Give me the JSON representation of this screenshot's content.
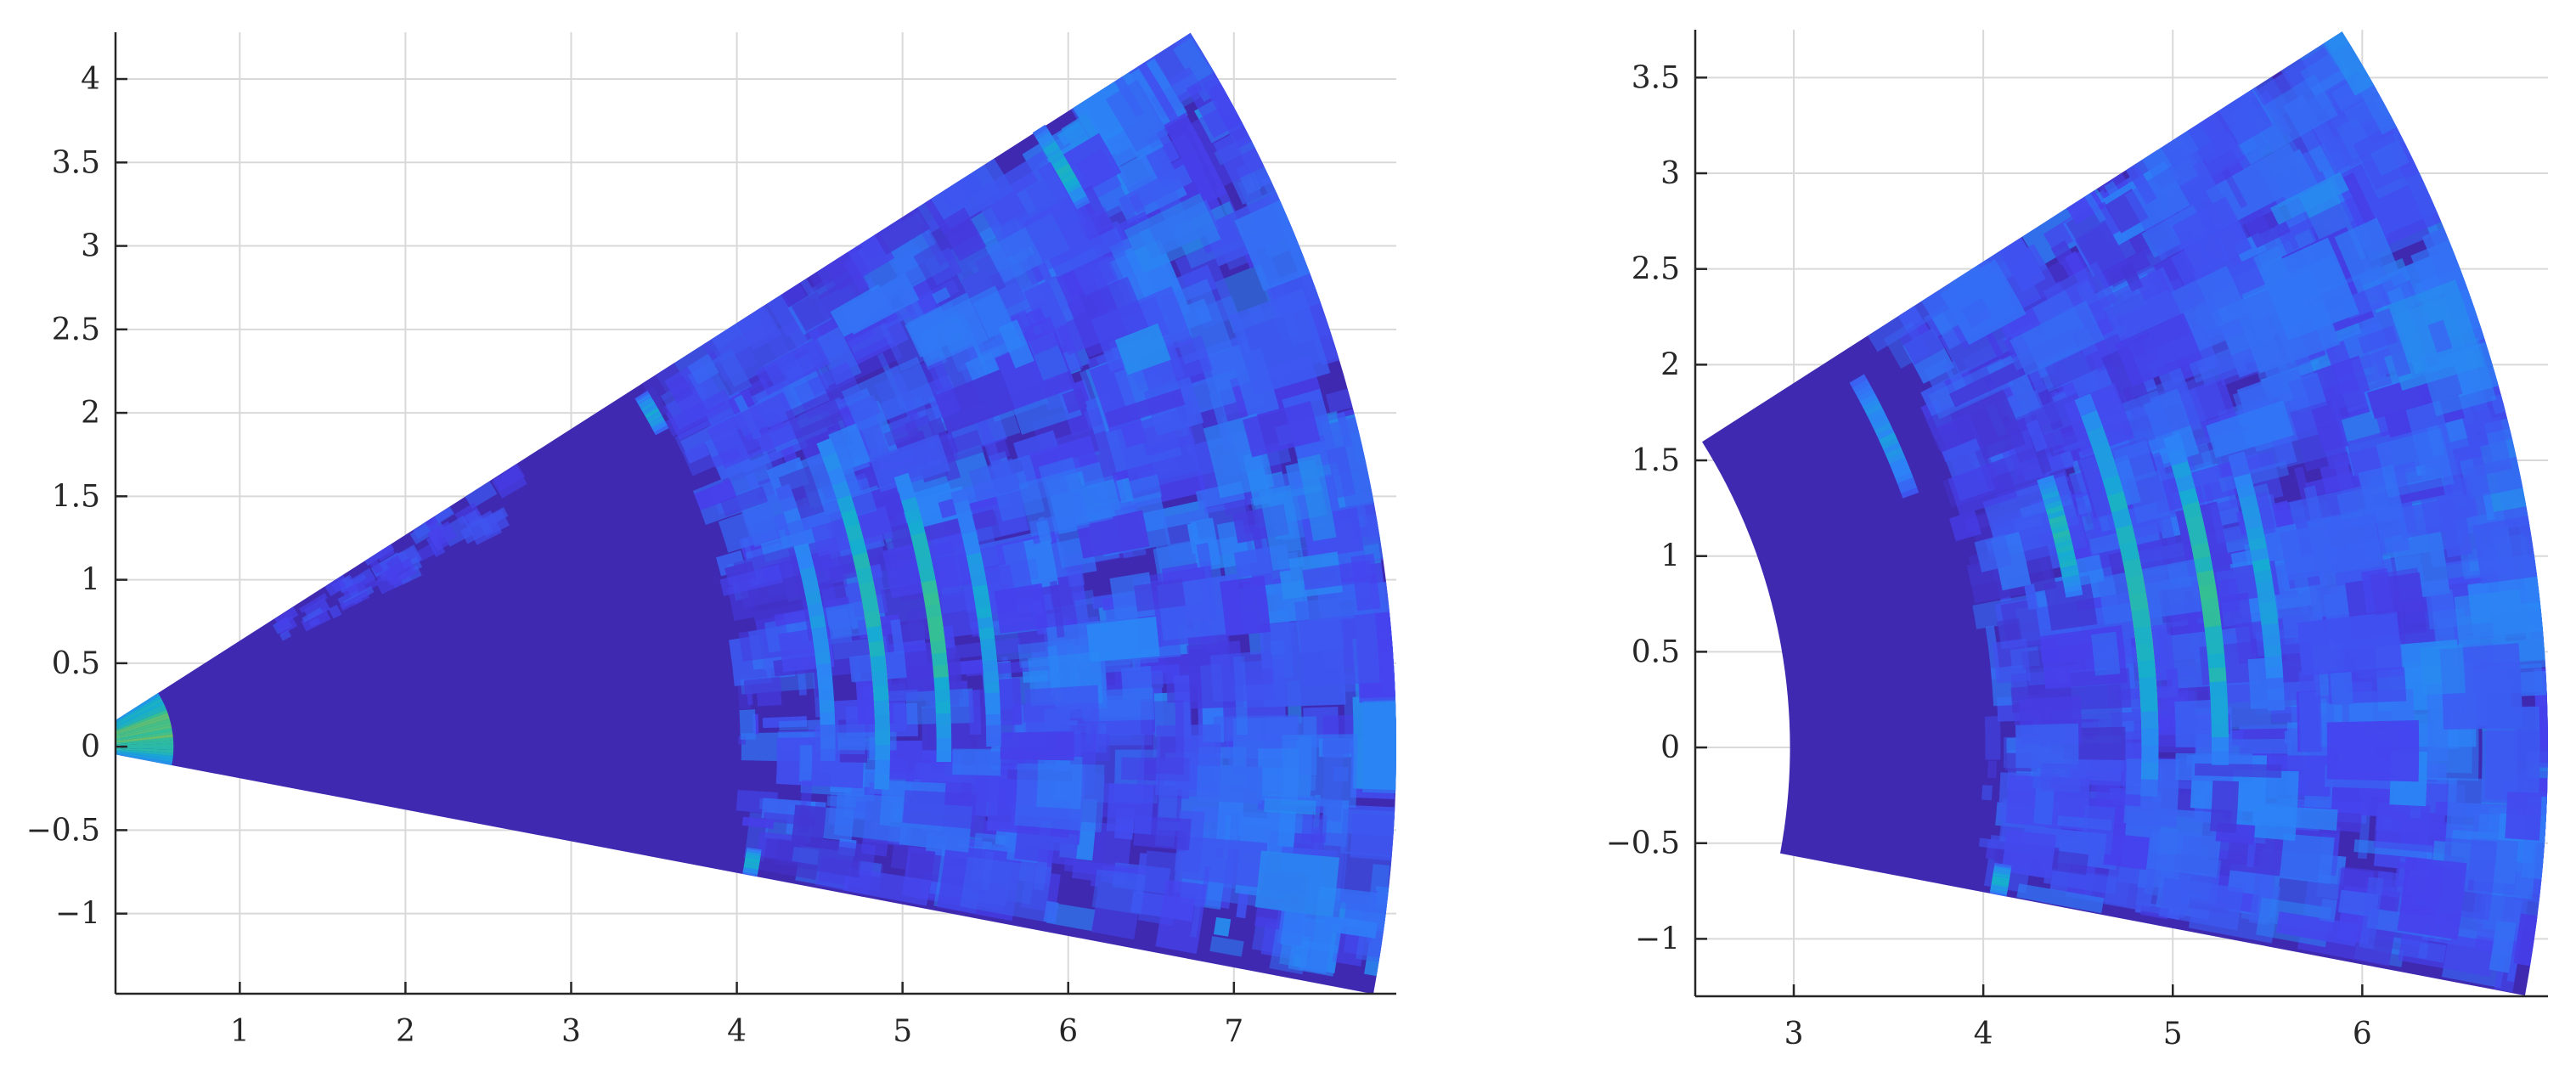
{
  "chart_data": [
    {
      "type": "heatmap",
      "subtype": "polar-sector",
      "title": "",
      "xlabel": "",
      "ylabel": "",
      "xlim": [
        0.25,
        7.98
      ],
      "ylim": [
        -1.48,
        4.28
      ],
      "grid": true,
      "colormap": "parula",
      "x_ticks": [
        1,
        2,
        3,
        4,
        5,
        6,
        7
      ],
      "x_tick_labels": [
        "1",
        "2",
        "3",
        "4",
        "5",
        "6",
        "7"
      ],
      "y_ticks": [
        -1,
        -0.5,
        0,
        0.5,
        1,
        1.5,
        2,
        2.5,
        3,
        3.5,
        4
      ],
      "y_tick_labels": [
        "−1",
        "−0.5",
        "0",
        "0.5",
        "1",
        "1.5",
        "2",
        "2.5",
        "3",
        "3.5",
        "4"
      ],
      "sector": {
        "r_min": 0.28,
        "r_max": 7.98,
        "theta_min_deg": -10.7,
        "theta_max_deg": 32.4
      },
      "rings": [
        {
          "radius": 0.42,
          "intensity": 0.72,
          "theta_min_deg": -10.7,
          "theta_max_deg": 32.4
        },
        {
          "radius": 4.02,
          "intensity": 0.45,
          "theta_min_deg": 28.0,
          "theta_max_deg": 31.6
        },
        {
          "radius": 4.15,
          "intensity": 0.5,
          "theta_min_deg": -10.7,
          "theta_max_deg": -8.5
        },
        {
          "radius": 4.55,
          "intensity": 0.4,
          "theta_min_deg": -2.0,
          "theta_max_deg": 20.0
        },
        {
          "radius": 4.88,
          "intensity": 1.0,
          "theta_min_deg": 0.0,
          "theta_max_deg": 14.0
        },
        {
          "radius": 4.88,
          "intensity": 0.55,
          "theta_min_deg": -3.0,
          "theta_max_deg": 22.0
        },
        {
          "radius": 5.25,
          "intensity": 0.6,
          "theta_min_deg": -1.0,
          "theta_max_deg": 18.0
        },
        {
          "radius": 5.55,
          "intensity": 0.45,
          "theta_min_deg": 0.0,
          "theta_max_deg": 16.0
        },
        {
          "radius": 6.9,
          "intensity": 0.5,
          "theta_min_deg": 28.0,
          "theta_max_deg": 32.4
        }
      ]
    },
    {
      "type": "heatmap",
      "subtype": "polar-sector",
      "title": "",
      "xlabel": "",
      "ylabel": "",
      "xlim": [
        2.48,
        6.98
      ],
      "ylim": [
        -1.3,
        3.75
      ],
      "grid": true,
      "colormap": "parula",
      "x_ticks": [
        3,
        4,
        5,
        6
      ],
      "x_tick_labels": [
        "3",
        "4",
        "5",
        "6"
      ],
      "y_ticks": [
        -1,
        -0.5,
        0,
        0.5,
        1,
        1.5,
        2,
        2.5,
        3,
        3.5
      ],
      "y_tick_labels": [
        "−1",
        "−0.5",
        "0",
        "0.5",
        "1",
        "1.5",
        "2",
        "2.5",
        "3",
        "3.5"
      ],
      "sector": {
        "r_min": 2.98,
        "r_max": 6.98,
        "theta_min_deg": -10.7,
        "theta_max_deg": 32.4
      },
      "rings": [
        {
          "radius": 3.85,
          "intensity": 0.4,
          "theta_min_deg": 20.0,
          "theta_max_deg": 30.0
        },
        {
          "radius": 4.15,
          "intensity": 0.5,
          "theta_min_deg": -10.7,
          "theta_max_deg": -8.5
        },
        {
          "radius": 4.55,
          "intensity": 0.55,
          "theta_min_deg": 10.0,
          "theta_max_deg": 18.0
        },
        {
          "radius": 4.88,
          "intensity": 1.0,
          "theta_min_deg": 0.0,
          "theta_max_deg": 14.0
        },
        {
          "radius": 4.88,
          "intensity": 0.55,
          "theta_min_deg": -3.0,
          "theta_max_deg": 22.0
        },
        {
          "radius": 5.25,
          "intensity": 0.6,
          "theta_min_deg": -1.0,
          "theta_max_deg": 18.0
        },
        {
          "radius": 5.55,
          "intensity": 0.45,
          "theta_min_deg": 2.0,
          "theta_max_deg": 16.0
        }
      ]
    }
  ]
}
